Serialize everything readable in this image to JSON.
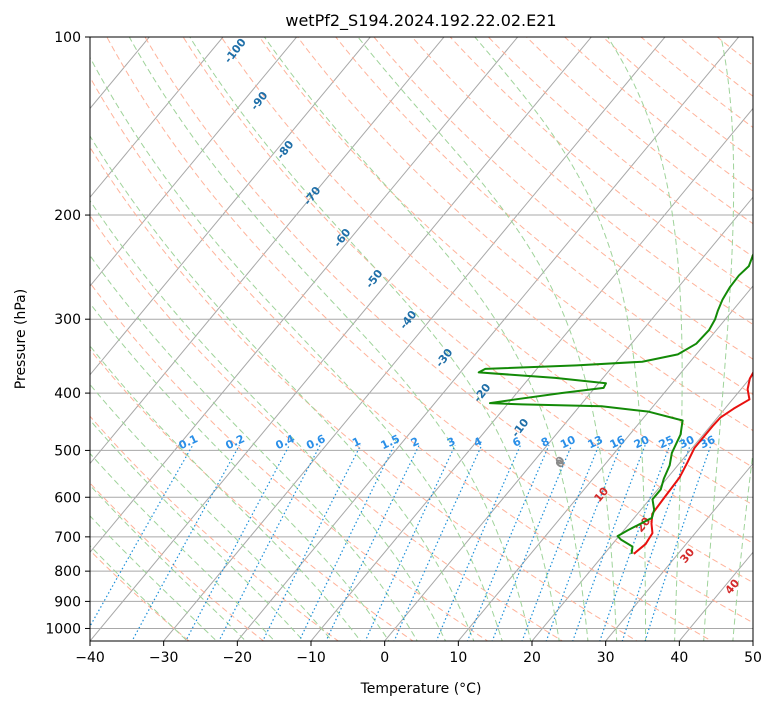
{
  "chart_data": {
    "type": "line",
    "title": "wetPf2_S194.2024.192.22.02.E21",
    "xlabel": "Temperature (°C)",
    "ylabel": "Pressure (hPa)",
    "xlim": [
      -40,
      50
    ],
    "ylim": [
      1050,
      100
    ],
    "y_scale": "log",
    "x_ticks": [
      "−40",
      "−30",
      "−20",
      "−10",
      "0",
      "10",
      "20",
      "30",
      "40",
      "50"
    ],
    "y_ticks": [
      {
        "value": 100,
        "label": "100"
      },
      {
        "value": 200,
        "label": "200"
      },
      {
        "value": 300,
        "label": "300"
      },
      {
        "value": 400,
        "label": "400"
      },
      {
        "value": 500,
        "label": "500"
      },
      {
        "value": 600,
        "label": "600"
      },
      {
        "value": 700,
        "label": "700"
      },
      {
        "value": 800,
        "label": "800"
      },
      {
        "value": 900,
        "label": "900"
      },
      {
        "value": 1000,
        "label": "1000"
      }
    ],
    "grid": true,
    "series": [
      {
        "role": "temperature",
        "color": "#e8110f",
        "points": [
          [
            24.0,
            748
          ],
          [
            24.5,
            720
          ],
          [
            24.2,
            690
          ],
          [
            23.0,
            665
          ],
          [
            22.0,
            640
          ],
          [
            21.8,
            600
          ],
          [
            21.6,
            555
          ],
          [
            21.0,
            525
          ],
          [
            20.3,
            495
          ],
          [
            20.3,
            455
          ],
          [
            20.4,
            440
          ],
          [
            21.2,
            425
          ],
          [
            22.3,
            410
          ],
          [
            20.9,
            394
          ],
          [
            20.0,
            378
          ],
          [
            19.5,
            358
          ],
          [
            18.0,
            340
          ],
          [
            16.2,
            320
          ],
          [
            13.8,
            290
          ],
          [
            11.2,
            260
          ],
          [
            8.7,
            233
          ],
          [
            6.0,
            210
          ],
          [
            3.5,
            192
          ],
          [
            1.2,
            175
          ],
          [
            -0.8,
            160
          ],
          [
            -2.2,
            148
          ],
          [
            -3.0,
            138
          ],
          [
            -3.8,
            128
          ]
        ]
      },
      {
        "role": "dewpoint",
        "color": "#138a07",
        "points": [
          [
            23.7,
            748
          ],
          [
            23.0,
            727
          ],
          [
            20.7,
            708
          ],
          [
            19.8,
            698
          ],
          [
            20.5,
            683
          ],
          [
            22.4,
            650
          ],
          [
            21.8,
            630
          ],
          [
            20.4,
            605
          ],
          [
            20.4,
            582
          ],
          [
            19.6,
            558
          ],
          [
            18.9,
            530
          ],
          [
            17.8,
            505
          ],
          [
            16.9,
            470
          ],
          [
            15.6,
            445
          ],
          [
            10.0,
            430
          ],
          [
            3.0,
            421
          ],
          [
            -8.0,
            418
          ],
          [
            -12.5,
            416
          ],
          [
            -9.5,
            410
          ],
          [
            -4.0,
            400
          ],
          [
            1.2,
            392
          ],
          [
            1.0,
            385
          ],
          [
            -6.5,
            377
          ],
          [
            -17.5,
            369
          ],
          [
            -17.0,
            364
          ],
          [
            -5.0,
            359
          ],
          [
            3.5,
            354
          ],
          [
            7.5,
            344
          ],
          [
            8.8,
            330
          ],
          [
            9.0,
            313
          ],
          [
            8.6,
            300
          ],
          [
            8.0,
            290
          ],
          [
            7.4,
            278
          ],
          [
            7.0,
            265
          ],
          [
            6.9,
            253
          ],
          [
            7.2,
            244
          ],
          [
            6.4,
            232
          ],
          [
            5.0,
            221
          ],
          [
            3.8,
            212
          ],
          [
            2.9,
            202
          ],
          [
            2.0,
            188
          ],
          [
            1.0,
            172
          ],
          [
            -0.5,
            156
          ],
          [
            -1.6,
            145
          ],
          [
            -2.8,
            132
          ],
          [
            -3.6,
            122
          ],
          [
            -3.8,
            115
          ],
          [
            -3.0,
            110
          ],
          [
            -2.0,
            104
          ],
          [
            -0.9,
            100
          ]
        ]
      }
    ],
    "moist_adiabat_labels": [
      "0",
      "10",
      "20",
      "30",
      "40"
    ],
    "dry_adiabat_labels": [
      "-100",
      "-90",
      "-80",
      "-70",
      "-60",
      "-50",
      "-40",
      "-30",
      "-20",
      "-10",
      "0"
    ],
    "mixing_ratio_labels": [
      "0.1",
      "0.2",
      "0.4",
      "0.6",
      "1",
      "1.5",
      "2",
      "3",
      "4",
      "6",
      "8",
      "10",
      "13",
      "16",
      "20",
      "25",
      "30",
      "36"
    ],
    "colors": {
      "isotherm": "#a8a8a8",
      "dry_adiabat": "#ffb39b",
      "moist_adiabat": "#9fd39a",
      "mixing_ratio": "#1a8ed8",
      "dry_label": "#1f6fa8",
      "moist_label": "#d42a2a",
      "mixing_label": "#2a8fe8",
      "zero_label": "#8a8a8a"
    }
  }
}
